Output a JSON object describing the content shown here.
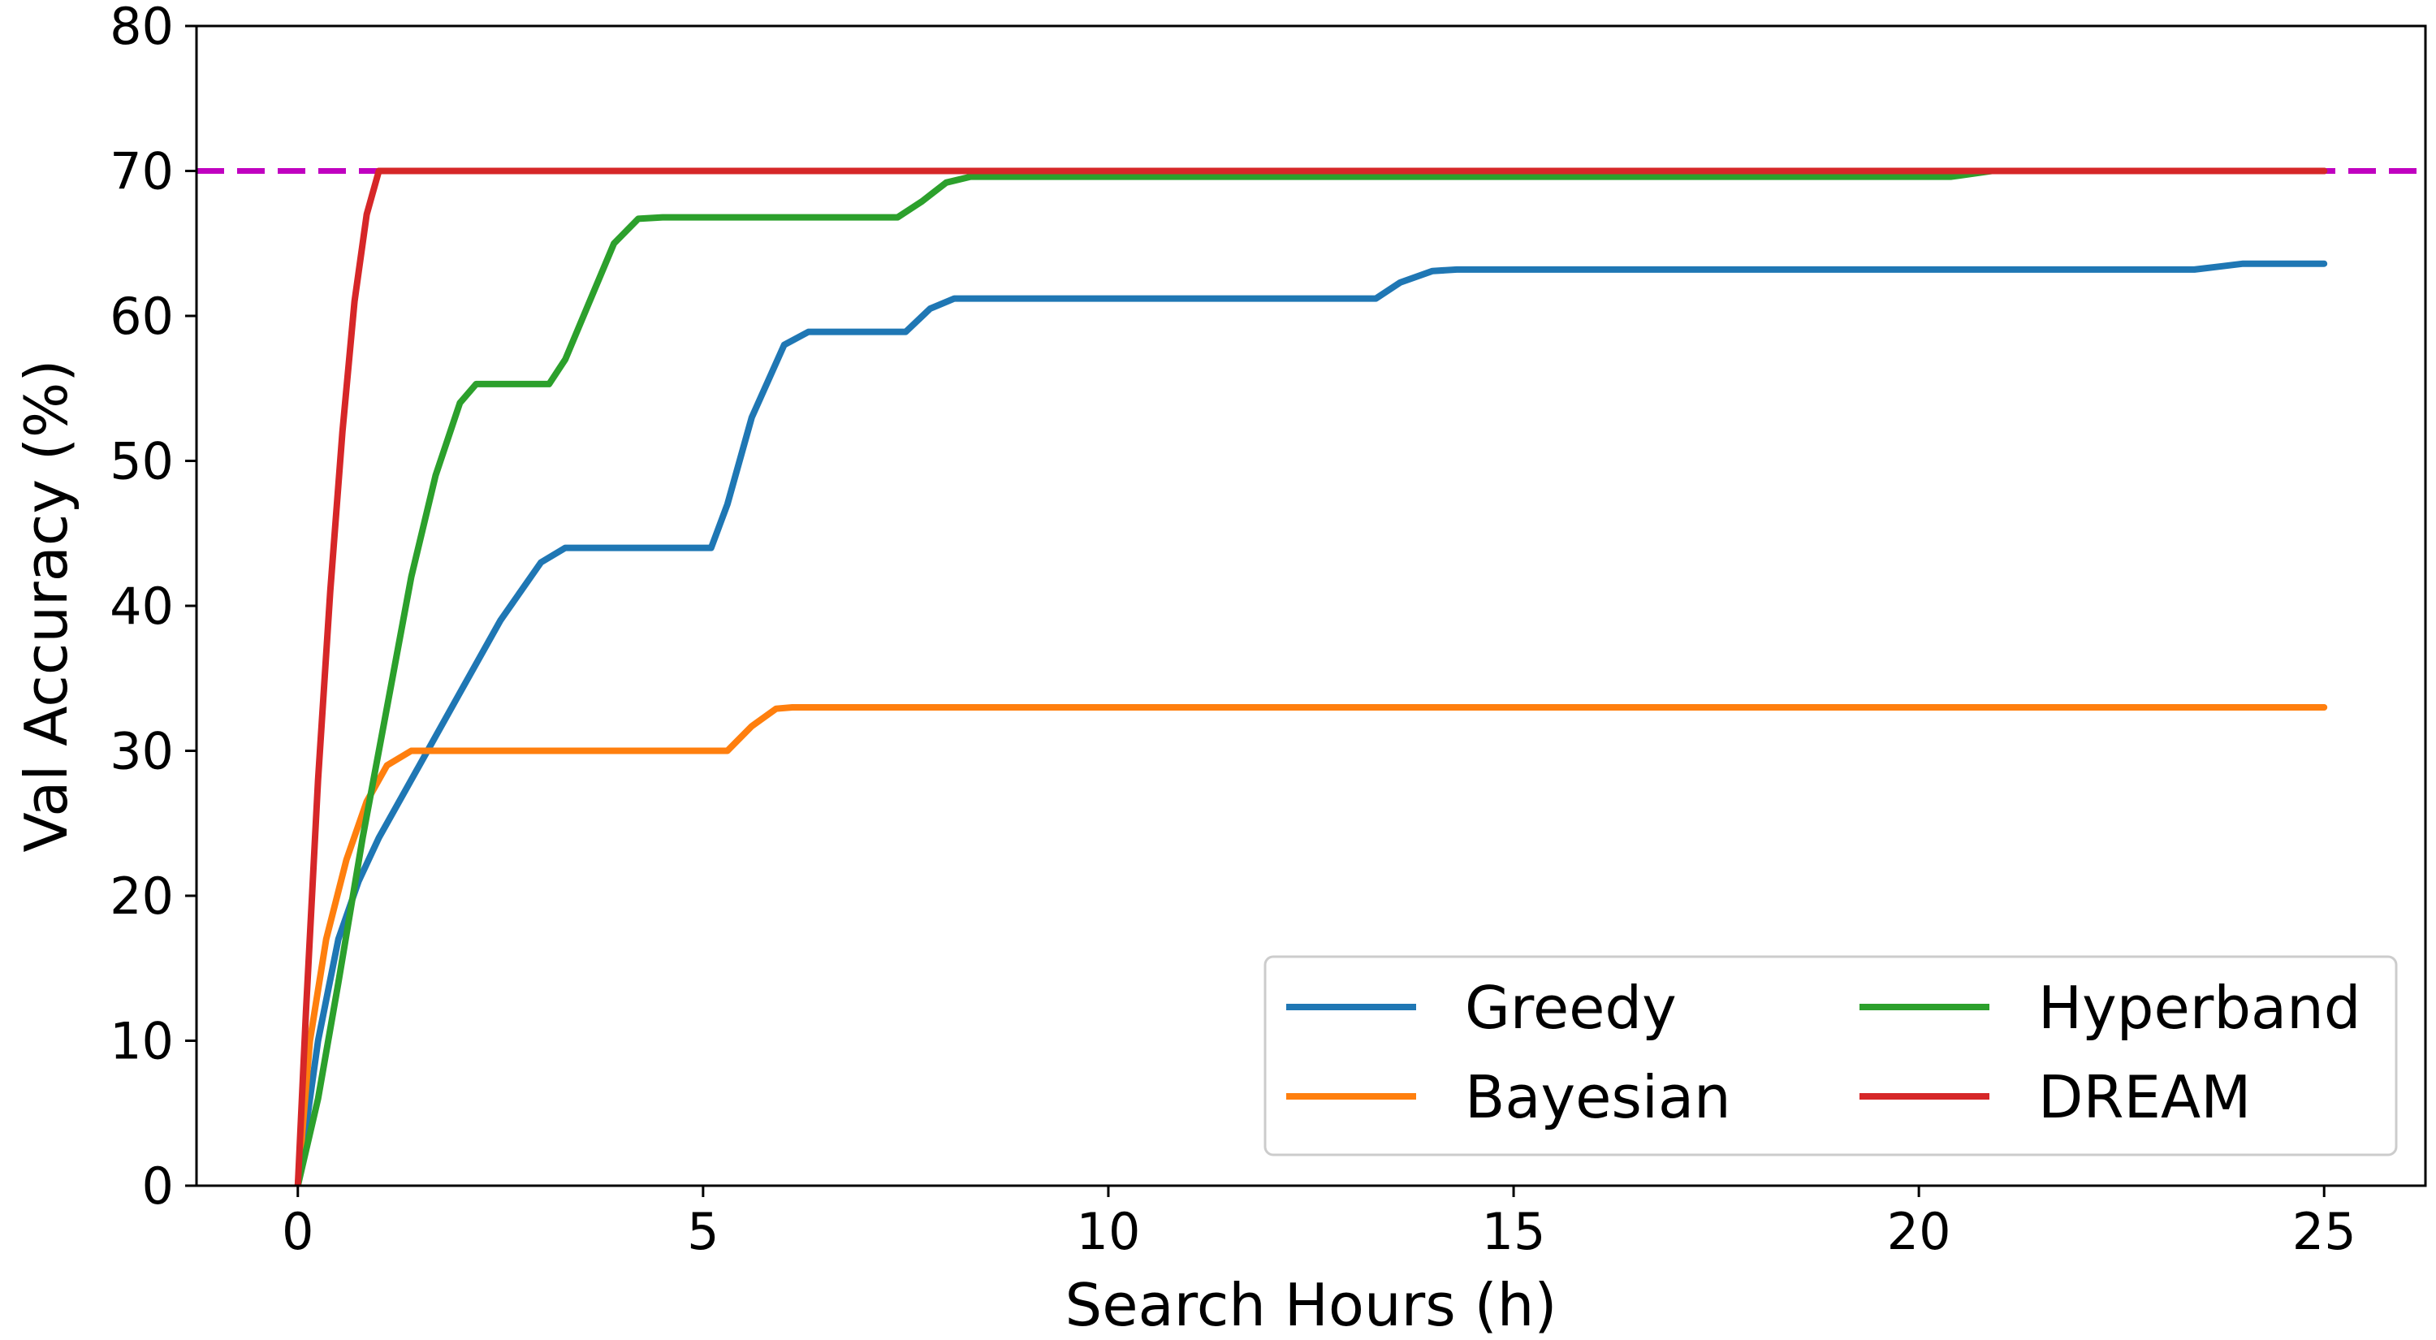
{
  "chart_data": {
    "type": "line",
    "title": "",
    "xlabel": "Search Hours (h)",
    "ylabel": "Val Accuracy (%)",
    "xlim": [
      -1.25,
      26.25
    ],
    "ylim": [
      0,
      80
    ],
    "xticks": [
      0,
      5,
      10,
      15,
      20,
      25
    ],
    "yticks": [
      0,
      10,
      20,
      30,
      40,
      50,
      60,
      70,
      80
    ],
    "grid": false,
    "legend_position": "lower-right",
    "legend_columns": 2,
    "reference_line": {
      "y": 70,
      "style": "dashed",
      "color": "#c000c0"
    },
    "series": [
      {
        "name": "Greedy",
        "color": "#1f77b4",
        "x": [
          0,
          0.25,
          0.5,
          0.75,
          1.0,
          1.5,
          2.0,
          2.5,
          3.0,
          3.3,
          3.5,
          4.0,
          5.1,
          5.3,
          5.6,
          6.0,
          6.3,
          6.5,
          7.5,
          7.8,
          8.1,
          8.4,
          13.3,
          13.6,
          14.0,
          14.3,
          23.4,
          23.7,
          24.0,
          25.0
        ],
        "y": [
          0,
          10,
          17,
          21,
          24,
          29,
          34,
          39,
          43,
          44,
          44,
          44,
          44,
          47,
          53,
          58,
          58.9,
          58.9,
          58.9,
          60.5,
          61.2,
          61.2,
          61.2,
          62.3,
          63.1,
          63.2,
          63.2,
          63.4,
          63.6,
          63.6
        ]
      },
      {
        "name": "Bayesian",
        "color": "#ff7f0e",
        "x": [
          0,
          0.15,
          0.35,
          0.6,
          0.85,
          1.1,
          1.4,
          2.0,
          5.3,
          5.6,
          5.9,
          6.1,
          25.0
        ],
        "y": [
          0,
          10,
          17,
          22.5,
          26.5,
          29,
          30,
          30,
          30,
          31.7,
          32.9,
          33,
          33
        ]
      },
      {
        "name": "Hyperband",
        "color": "#2ca02c",
        "x": [
          0,
          0.25,
          0.5,
          0.8,
          1.1,
          1.4,
          1.7,
          2.0,
          2.2,
          2.5,
          3.1,
          3.3,
          3.6,
          3.9,
          4.2,
          4.5,
          7.4,
          7.7,
          8.0,
          8.3,
          20.4,
          20.9,
          21.2,
          25.0
        ],
        "y": [
          0,
          6,
          14,
          24,
          33,
          42,
          49,
          54,
          55.3,
          55.3,
          55.3,
          57,
          61,
          65,
          66.7,
          66.8,
          66.8,
          67.9,
          69.2,
          69.6,
          69.6,
          70,
          70,
          70
        ]
      },
      {
        "name": "DREAM",
        "color": "#d62728",
        "x": [
          0,
          0.1,
          0.25,
          0.4,
          0.55,
          0.7,
          0.85,
          1.0,
          25.0
        ],
        "y": [
          0,
          12,
          28,
          41,
          52,
          61,
          67,
          70,
          70
        ]
      }
    ]
  }
}
